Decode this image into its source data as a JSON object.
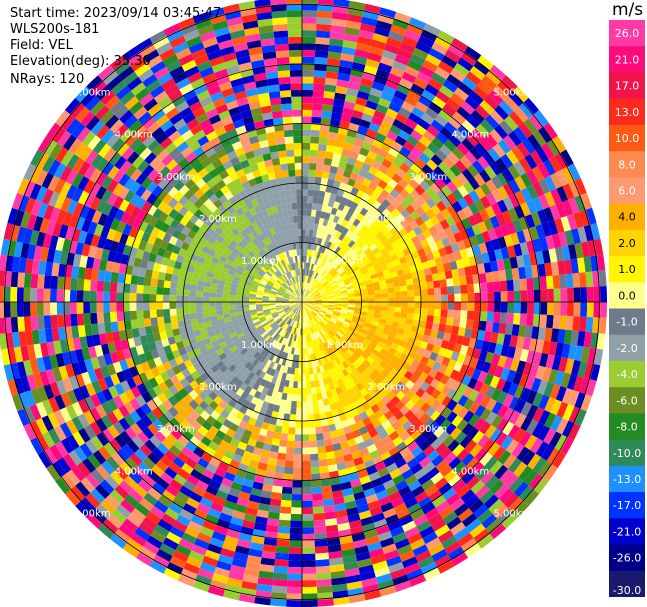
{
  "header": {
    "start_time": "Start time: 2023/09/14 03:45:47",
    "instrument": "WLS200s-181",
    "field": "Field: VEL",
    "elevation": "Elevation(deg): 35.30",
    "nrays": "NRays: 120"
  },
  "colorbar": {
    "unit": "m/s",
    "ticks": [
      "26.0",
      "21.0",
      "17.0",
      "13.0",
      "10.0",
      "8.0",
      "6.0",
      "4.0",
      "2.0",
      "1.0",
      "0.0",
      "-1.0",
      "-2.0",
      "-4.0",
      "-6.0",
      "-8.0",
      "-10.0",
      "-13.0",
      "-17.0",
      "-21.0",
      "-26.0",
      "-30.0"
    ],
    "colors": [
      "#ff3aa6",
      "#ff0a7a",
      "#f2134b",
      "#ff2a1a",
      "#ff5a14",
      "#ff8a50",
      "#ff9a70",
      "#ffb000",
      "#ffd400",
      "#fff600",
      "#ffff8c",
      "#6e7b8b",
      "#8fa0a8",
      "#9acd32",
      "#6b8e23",
      "#228b22",
      "#2e8b57",
      "#1e90ff",
      "#0033ff",
      "#0000cd",
      "#00008b",
      "#191970"
    ]
  },
  "chart_data": {
    "type": "ppi",
    "field": "VEL",
    "units": "m/s",
    "elevation_deg": 35.3,
    "nrays": 120,
    "range_ring_labels": [
      "1.00km",
      "2.00km",
      "3.00km",
      "4.00km",
      "5.00km"
    ],
    "colorbar_ticks": [
      26.0,
      21.0,
      17.0,
      13.0,
      10.0,
      8.0,
      6.0,
      4.0,
      2.0,
      1.0,
      0.0,
      -1.0,
      -2.0,
      -4.0,
      -6.0,
      -8.0,
      -10.0,
      -13.0,
      -17.0,
      -21.0,
      -26.0,
      -30.0
    ],
    "vmin": -30.0,
    "vmax": 26.0
  }
}
